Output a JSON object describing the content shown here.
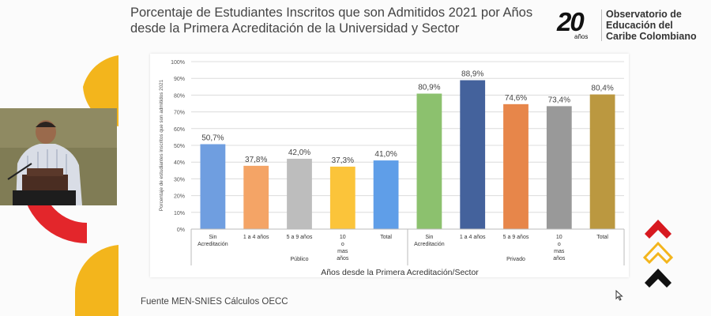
{
  "slide": {
    "title": "Porcentaje de Estudiantes Inscritos que son Admitidos 2021 por Años\ndesde la Primera Acreditación de la Universidad y Sector",
    "source": "Fuente MEN-SNIES Cálculos OECC"
  },
  "logo": {
    "number": "20",
    "anos": "años",
    "line1": "Observatorio de",
    "line2": "Educación del",
    "line3": "Caribe Colombiano"
  },
  "colors": {
    "accent_red": "#e3262b",
    "accent_yellow": "#f3b51c",
    "accent_black": "#111111"
  },
  "chart_data": {
    "type": "bar",
    "title": "",
    "xlabel": "Años desde la Primera Acreditación/Sector",
    "ylabel": "Porcentaje de estudiantes inscritos que son admitidos 2021",
    "ylim": [
      0,
      100
    ],
    "yticks": [
      "0%",
      "10%",
      "20%",
      "30%",
      "40%",
      "50%",
      "60%",
      "70%",
      "80%",
      "90%",
      "100%"
    ],
    "grid": true,
    "groups": [
      {
        "name": "Público",
        "categories": [
          "Sin Acreditación",
          "1 a 4 años",
          "5 a 9 años",
          "10 o mas años",
          "Total"
        ],
        "values": [
          50.7,
          37.8,
          42.0,
          37.3,
          41.0
        ],
        "labels": [
          "50,7%",
          "37,8%",
          "42,0%",
          "37,3%",
          "41,0%"
        ],
        "colors": [
          "#6f9ee0",
          "#f4a466",
          "#bdbdbd",
          "#fbc43a",
          "#5f9ee8"
        ]
      },
      {
        "name": "Privado",
        "categories": [
          "Sin Acreditación",
          "1 a 4 años",
          "5 a 9 años",
          "10 o mas años",
          "Total"
        ],
        "values": [
          80.9,
          88.9,
          74.6,
          73.4,
          80.4
        ],
        "labels": [
          "80,9%",
          "88,9%",
          "74,6%",
          "73,4%",
          "80,4%"
        ],
        "colors": [
          "#8cc16e",
          "#44629c",
          "#e7864a",
          "#999999",
          "#bb9840"
        ]
      }
    ]
  }
}
